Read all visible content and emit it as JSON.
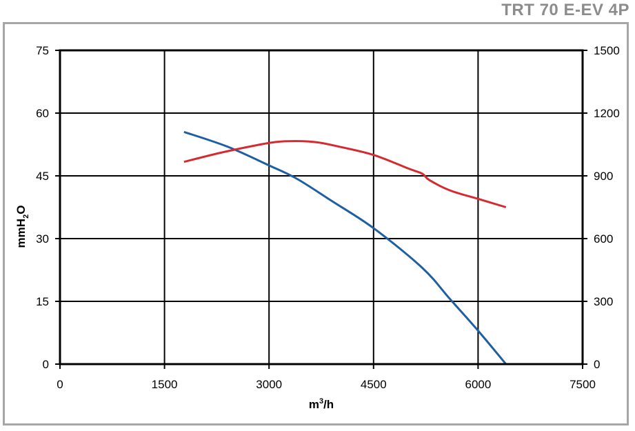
{
  "header": {
    "model_title": "TRT 70 E-EV 4P"
  },
  "chart_data": {
    "type": "line",
    "title": "TRT 70 E-EV 4P",
    "xlabel": "m³/h",
    "xlabel_base": "m",
    "xlabel_sup": "3",
    "xlabel_tail": "/h",
    "ylabel": "mmH₂O",
    "ylabel_base": "mmH",
    "ylabel_sub": "2",
    "ylabel_tail": "O",
    "xlim": [
      0,
      7500
    ],
    "ylim": [
      0,
      75
    ],
    "ylim_right": [
      0,
      1500
    ],
    "x_ticks": [
      "0",
      "1500",
      "3000",
      "4500",
      "6000",
      "7500"
    ],
    "y_ticks": [
      "0",
      "15",
      "30",
      "45",
      "60",
      "75"
    ],
    "y_right_ticks": [
      "0",
      "300",
      "600",
      "900",
      "1200",
      "1500"
    ],
    "grid": true,
    "series": [
      {
        "axis": "left",
        "color": "#1f5fa0",
        "x": [
          1780,
          2400,
          3000,
          3400,
          3900,
          4500,
          5200,
          5600,
          6000,
          6400
        ],
        "y": [
          55.5,
          52,
          47.5,
          44.3,
          39,
          32.5,
          23,
          15.5,
          8,
          0
        ]
      },
      {
        "axis": "right",
        "color": "#d42a30",
        "x": [
          1780,
          2300,
          2800,
          3100,
          3400,
          3700,
          4000,
          4500,
          5000,
          5200,
          5300,
          5600,
          6000,
          6400
        ],
        "y": [
          967,
          1010,
          1045,
          1062,
          1066,
          1060,
          1040,
          1000,
          935,
          910,
          880,
          830,
          790,
          750
        ]
      }
    ]
  }
}
